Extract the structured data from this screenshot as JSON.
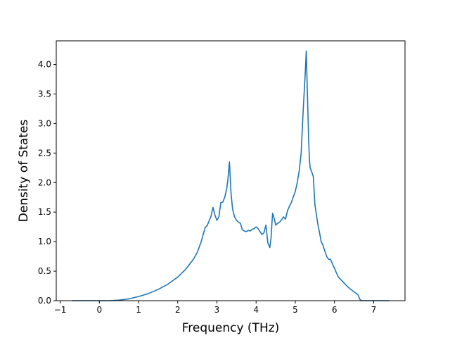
{
  "chart_data": {
    "type": "line",
    "title": "",
    "xlabel": "Frequency (THz)",
    "ylabel": "Density of States",
    "xlim": [
      -1.1,
      7.8
    ],
    "ylim": [
      0.0,
      4.4
    ],
    "xticks": [
      -1,
      0,
      1,
      2,
      3,
      4,
      5,
      6,
      7
    ],
    "xtick_labels": [
      "−1",
      "0",
      "1",
      "2",
      "3",
      "4",
      "5",
      "6",
      "7"
    ],
    "yticks": [
      0.0,
      0.5,
      1.0,
      1.5,
      2.0,
      2.5,
      3.0,
      3.5,
      4.0
    ],
    "ytick_labels": [
      "0.0",
      "0.5",
      "1.0",
      "1.5",
      "2.0",
      "2.5",
      "3.0",
      "3.5",
      "4.0"
    ],
    "grid": false,
    "series": [
      {
        "color": "#1f77b4",
        "x": [
          -0.7,
          -0.3,
          0.0,
          0.25,
          0.5,
          0.75,
          1.0,
          1.25,
          1.5,
          1.75,
          2.0,
          2.2,
          2.4,
          2.5,
          2.6,
          2.65,
          2.7,
          2.75,
          2.8,
          2.85,
          2.9,
          2.95,
          3.0,
          3.05,
          3.1,
          3.15,
          3.2,
          3.25,
          3.28,
          3.32,
          3.36,
          3.4,
          3.45,
          3.5,
          3.55,
          3.6,
          3.65,
          3.7,
          3.75,
          3.8,
          3.85,
          3.9,
          3.95,
          4.0,
          4.05,
          4.1,
          4.15,
          4.2,
          4.25,
          4.3,
          4.35,
          4.38,
          4.42,
          4.46,
          4.5,
          4.55,
          4.6,
          4.65,
          4.7,
          4.75,
          4.8,
          4.85,
          4.9,
          4.95,
          5.0,
          5.05,
          5.1,
          5.15,
          5.2,
          5.25,
          5.28,
          5.31,
          5.34,
          5.36,
          5.38,
          5.42,
          5.46,
          5.5,
          5.54,
          5.58,
          5.62,
          5.66,
          5.7,
          5.75,
          5.8,
          5.85,
          5.9,
          5.95,
          6.0,
          6.05,
          6.1,
          6.2,
          6.3,
          6.4,
          6.5,
          6.6,
          6.65,
          6.7,
          6.75,
          6.9,
          7.1,
          7.4
        ],
        "values": [
          0.0,
          0.0,
          0.0,
          0.0,
          0.01,
          0.03,
          0.07,
          0.12,
          0.19,
          0.28,
          0.4,
          0.53,
          0.7,
          0.82,
          1.0,
          1.12,
          1.24,
          1.27,
          1.35,
          1.43,
          1.58,
          1.45,
          1.36,
          1.42,
          1.66,
          1.67,
          1.75,
          1.9,
          2.05,
          2.35,
          1.82,
          1.55,
          1.42,
          1.36,
          1.33,
          1.31,
          1.2,
          1.18,
          1.17,
          1.19,
          1.18,
          1.21,
          1.22,
          1.25,
          1.22,
          1.17,
          1.12,
          1.15,
          1.28,
          0.98,
          0.9,
          1.05,
          1.48,
          1.4,
          1.28,
          1.31,
          1.33,
          1.37,
          1.42,
          1.38,
          1.52,
          1.6,
          1.66,
          1.76,
          1.85,
          2.0,
          2.2,
          2.5,
          3.2,
          3.8,
          4.23,
          3.5,
          2.75,
          2.4,
          2.25,
          2.18,
          2.1,
          1.63,
          1.45,
          1.28,
          1.15,
          1.0,
          0.95,
          0.85,
          0.75,
          0.7,
          0.7,
          0.62,
          0.55,
          0.47,
          0.4,
          0.33,
          0.26,
          0.2,
          0.15,
          0.1,
          0.02,
          0.0,
          0.0,
          0.0,
          0.0,
          0.0
        ]
      }
    ]
  }
}
